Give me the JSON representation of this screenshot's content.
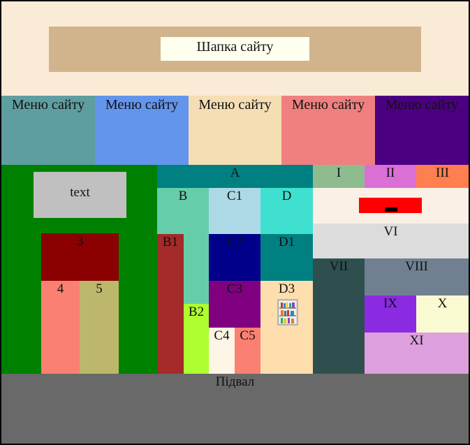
{
  "header": {
    "title": "Шапка сайту"
  },
  "menu": [
    "Меню сайту",
    "Меню сайту",
    "Меню сайту",
    "Меню сайту",
    "Меню сайту"
  ],
  "left": {
    "text_box": "text",
    "block_3": "3",
    "block_4": "4",
    "block_5": "5"
  },
  "middle": {
    "A": "A",
    "B": "B",
    "C1": "C1",
    "D": "D",
    "B1": "B1",
    "C2": "C2",
    "D1": "D1",
    "C3": "C3",
    "D3": "D3",
    "B2": "B2",
    "C4": "C4",
    "C5": "C5"
  },
  "right": {
    "I": "I",
    "II": "II",
    "III": "III",
    "VI": "VI",
    "VII": "VII",
    "VIII": "VIII",
    "IX": "IX",
    "X": "X",
    "XI": "XI"
  },
  "footer": {
    "label": "Підвал"
  },
  "colors": {
    "header_bg": "#faebd7",
    "header_inner": "#d2b48c",
    "header_title_bg": "#fffff0",
    "menu": [
      "#5f9ea0",
      "#6495ed",
      "#f5deb3",
      "#f08080",
      "#4b0082"
    ],
    "left_bg": "#008000",
    "footer_bg": "#696969"
  }
}
